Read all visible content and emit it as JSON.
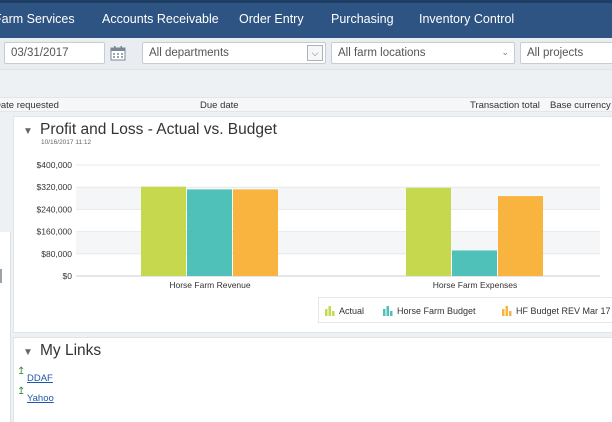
{
  "nav": {
    "items": [
      "Farm Services",
      "Accounts Receivable",
      "Order Entry",
      "Purchasing",
      "Inventory Control"
    ]
  },
  "filters": {
    "date": "03/31/2017",
    "department": "All departments",
    "location": "All farm locations",
    "project": "All projects"
  },
  "columns": {
    "date_requested": "Date requested",
    "due_date": "Due date",
    "transaction_total": "Transaction total",
    "base_currency": "Base currency"
  },
  "chart_panel": {
    "title": "Profit and Loss - Actual vs. Budget",
    "timestamp": "10/16/2017 11:12"
  },
  "chart_data": {
    "type": "bar",
    "title": "Profit and Loss - Actual vs. Budget",
    "categories": [
      "Horse Farm Revenue",
      "Horse Farm Expenses"
    ],
    "series": [
      {
        "name": "Actual",
        "color": "#c6d84e",
        "values": [
          322000,
          318000
        ]
      },
      {
        "name": "Horse Farm Budget",
        "color": "#4fc1b8",
        "values": [
          312000,
          92000
        ]
      },
      {
        "name": "HF Budget REV Mar 17",
        "color": "#f8b43e",
        "values": [
          312000,
          288000
        ]
      }
    ],
    "y_ticks": [
      "$400,000",
      "$320,000",
      "$240,000",
      "$160,000",
      "$80,000",
      "$0"
    ],
    "ylim": [
      0,
      400000
    ],
    "legend_position": "bottom-right"
  },
  "links_panel": {
    "title": "My Links",
    "links": [
      "DDAF",
      "Yahoo"
    ]
  },
  "colors": {
    "nav_bg": "#2d5482",
    "link": "#1f58a8"
  }
}
